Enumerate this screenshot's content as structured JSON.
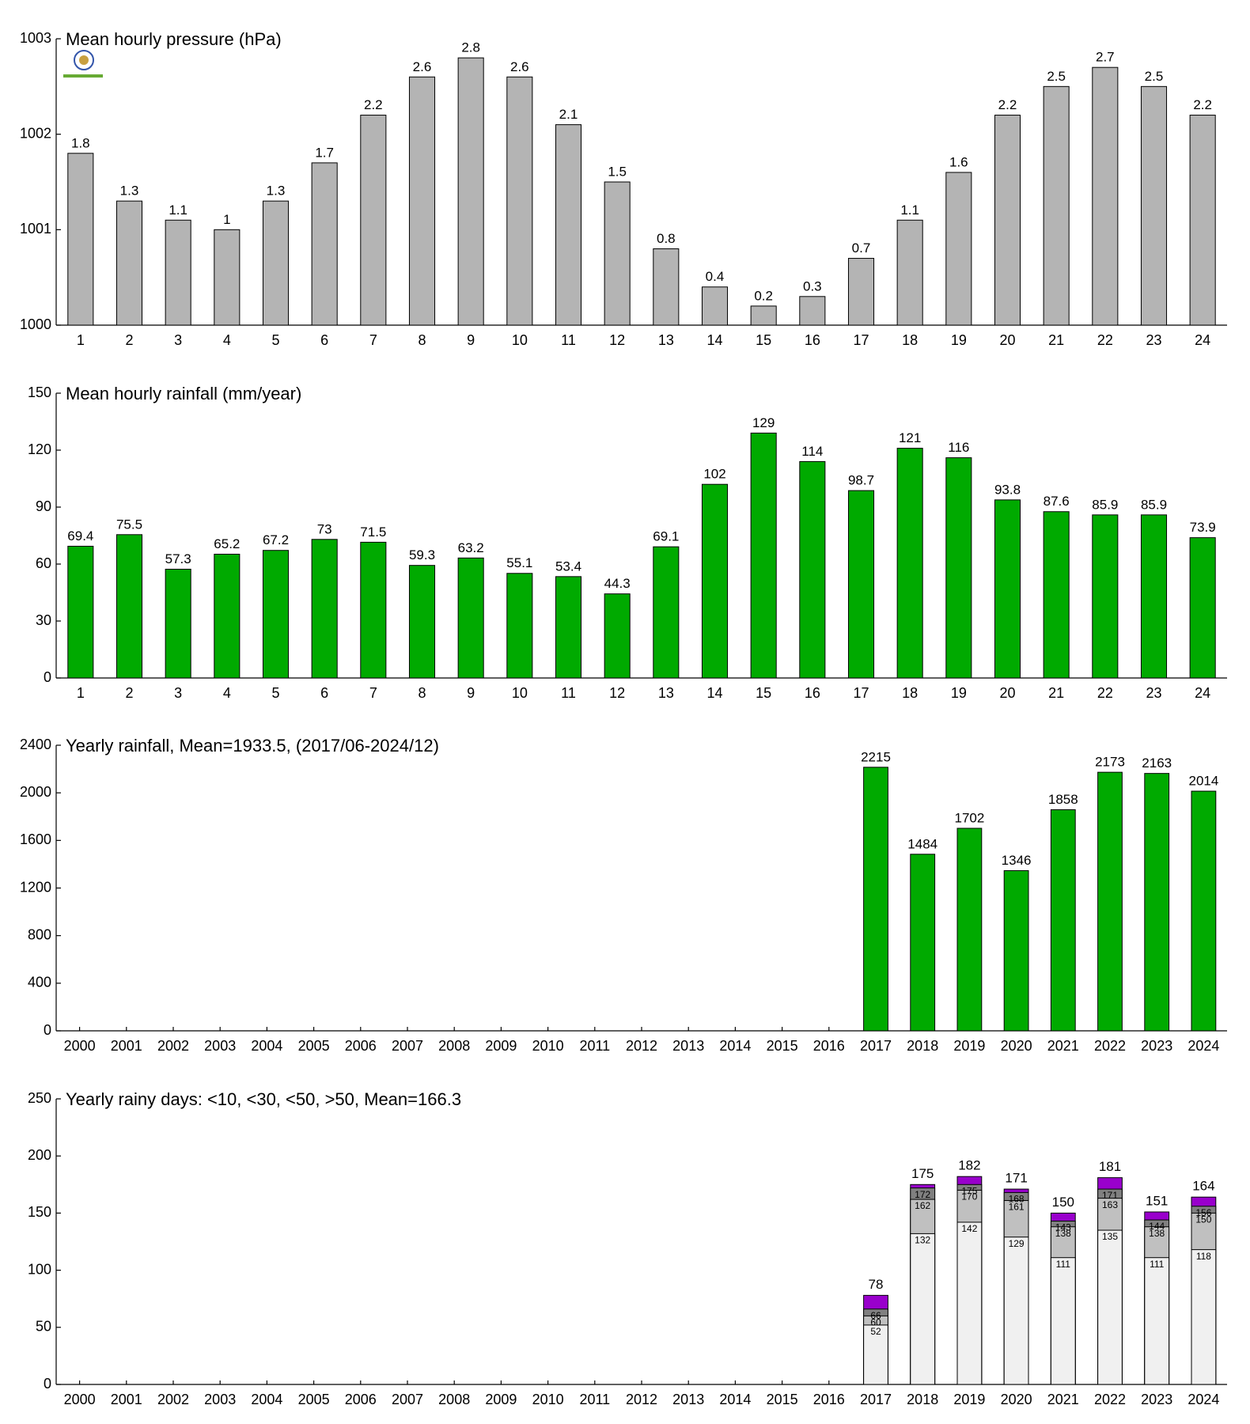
{
  "chart_data": [
    {
      "type": "bar",
      "title": "Mean hourly pressure (hPa)",
      "categories": [
        "1",
        "2",
        "3",
        "4",
        "5",
        "6",
        "7",
        "8",
        "9",
        "10",
        "11",
        "12",
        "13",
        "14",
        "15",
        "16",
        "17",
        "18",
        "19",
        "20",
        "21",
        "22",
        "23",
        "24"
      ],
      "values": [
        1001.8,
        1001.3,
        1001.1,
        1001.0,
        1001.3,
        1001.7,
        1002.2,
        1002.6,
        1002.8,
        1002.6,
        1002.1,
        1001.5,
        1000.8,
        1000.4,
        1000.2,
        1000.3,
        1000.7,
        1001.1,
        1001.6,
        1002.2,
        1002.5,
        1002.7,
        1002.5,
        1002.2
      ],
      "value_labels": [
        "1.8",
        "1.3",
        "1.1",
        "1",
        "1.3",
        "1.7",
        "2.2",
        "2.6",
        "2.8",
        "2.6",
        "2.1",
        "1.5",
        "0.8",
        "0.4",
        "0.2",
        "0.3",
        "0.7",
        "1.1",
        "1.6",
        "2.2",
        "2.5",
        "2.7",
        "2.5",
        "2.2"
      ],
      "color": "#b4b4b4",
      "ylim": [
        1000,
        1003
      ],
      "yticks": [
        1000,
        1001,
        1002,
        1003
      ]
    },
    {
      "type": "bar",
      "title": "Mean hourly rainfall (mm/year)",
      "categories": [
        "1",
        "2",
        "3",
        "4",
        "5",
        "6",
        "7",
        "8",
        "9",
        "10",
        "11",
        "12",
        "13",
        "14",
        "15",
        "16",
        "17",
        "18",
        "19",
        "20",
        "21",
        "22",
        "23",
        "24"
      ],
      "values": [
        69.4,
        75.5,
        57.3,
        65.2,
        67.2,
        73,
        71.5,
        59.3,
        63.2,
        55.1,
        53.4,
        44.3,
        69.1,
        102,
        129,
        114,
        98.7,
        121,
        116,
        93.8,
        87.6,
        85.9,
        85.9,
        73.9
      ],
      "color": "#00aa00",
      "ylim": [
        0,
        150
      ],
      "yticks": [
        0,
        30,
        60,
        90,
        120,
        150
      ]
    },
    {
      "type": "bar",
      "title": "Yearly rainfall, Mean=1933.5, (2017/06-2024/12)",
      "categories": [
        "2000",
        "2001",
        "2002",
        "2003",
        "2004",
        "2005",
        "2006",
        "2007",
        "2008",
        "2009",
        "2010",
        "2011",
        "2012",
        "2013",
        "2014",
        "2015",
        "2016",
        "2017",
        "2018",
        "2019",
        "2020",
        "2021",
        "2022",
        "2023",
        "2024"
      ],
      "values": [
        null,
        null,
        null,
        null,
        null,
        null,
        null,
        null,
        null,
        null,
        null,
        null,
        null,
        null,
        null,
        null,
        null,
        2215,
        1484,
        1702,
        1346,
        1858,
        2173,
        2163,
        2014
      ],
      "color": "#00aa00",
      "ylim": [
        0,
        2400
      ],
      "yticks": [
        0,
        400,
        800,
        1200,
        1600,
        2000,
        2400
      ]
    },
    {
      "type": "bar",
      "title": "Yearly rainy days: <10, <30, <50, >50, Mean=166.3",
      "categories": [
        "2000",
        "2001",
        "2002",
        "2003",
        "2004",
        "2005",
        "2006",
        "2007",
        "2008",
        "2009",
        "2010",
        "2011",
        "2012",
        "2013",
        "2014",
        "2015",
        "2016",
        "2017",
        "2018",
        "2019",
        "2020",
        "2021",
        "2022",
        "2023",
        "2024"
      ],
      "series": [
        {
          "color": "#f0f0f0",
          "values": [
            null,
            null,
            null,
            null,
            null,
            null,
            null,
            null,
            null,
            null,
            null,
            null,
            null,
            null,
            null,
            null,
            null,
            52,
            132,
            142,
            129,
            111,
            135,
            111,
            118
          ]
        },
        {
          "color": "#c0c0c0",
          "values": [
            null,
            null,
            null,
            null,
            null,
            null,
            null,
            null,
            null,
            null,
            null,
            null,
            null,
            null,
            null,
            null,
            null,
            60,
            162,
            170,
            161,
            138,
            163,
            138,
            150
          ]
        },
        {
          "color": "#808080",
          "values": [
            null,
            null,
            null,
            null,
            null,
            null,
            null,
            null,
            null,
            null,
            null,
            null,
            null,
            null,
            null,
            null,
            null,
            66,
            172,
            175,
            168,
            143,
            171,
            144,
            156
          ]
        },
        {
          "color": "#9900cc",
          "values": [
            null,
            null,
            null,
            null,
            null,
            null,
            null,
            null,
            null,
            null,
            null,
            null,
            null,
            null,
            null,
            null,
            null,
            78,
            175,
            182,
            171,
            150,
            181,
            151,
            164
          ]
        }
      ],
      "ylim": [
        0,
        250
      ],
      "yticks": [
        0,
        50,
        100,
        150,
        200,
        250
      ]
    }
  ]
}
